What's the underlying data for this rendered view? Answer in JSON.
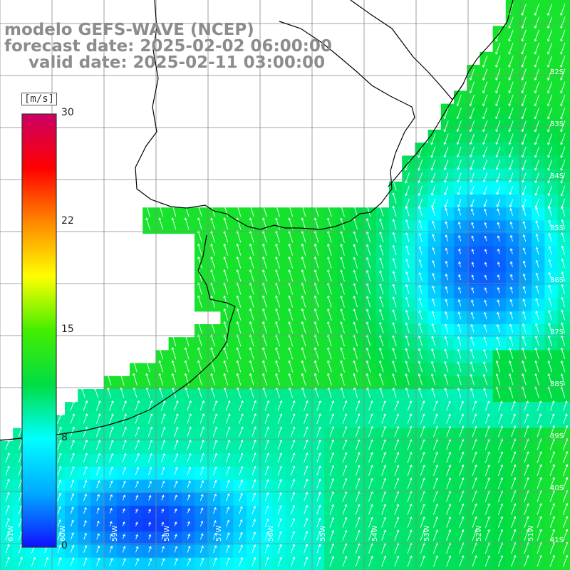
{
  "title": {
    "line1": "modelo GEFS-WAVE (NCEP)",
    "line2": "forecast date: 2025-02-02 06:00:00",
    "line3": "valid date: 2025-02-11 03:00:00"
  },
  "colorbar": {
    "unit": "[m/s]",
    "min": 0,
    "max": 30,
    "ticks": [
      "30",
      "22",
      "15",
      "8",
      "0"
    ],
    "tick_values": [
      30,
      22,
      15,
      8,
      0
    ],
    "stops": [
      "#1010ff",
      "#00aaff",
      "#00ffff",
      "#00dd44",
      "#44ee00",
      "#ffff00",
      "#ff8800",
      "#ff0000",
      "#cc0066"
    ]
  },
  "map": {
    "region": "South Atlantic off Rio de la Plata",
    "field": "wind speed (m/s) with wind direction arrows",
    "lat_labels": [
      "32S",
      "33S",
      "34S",
      "35S",
      "36S",
      "37S",
      "38S",
      "39S",
      "40S",
      "41S"
    ],
    "lon_labels": [
      "61W",
      "60W",
      "59W",
      "58W",
      "57W",
      "56W",
      "55W",
      "54W",
      "53W",
      "52W",
      "51W"
    ],
    "colors": {
      "land": "#ffffff",
      "coastline": "#000000",
      "grid": "#888888",
      "arrow": "#ffffff"
    }
  }
}
